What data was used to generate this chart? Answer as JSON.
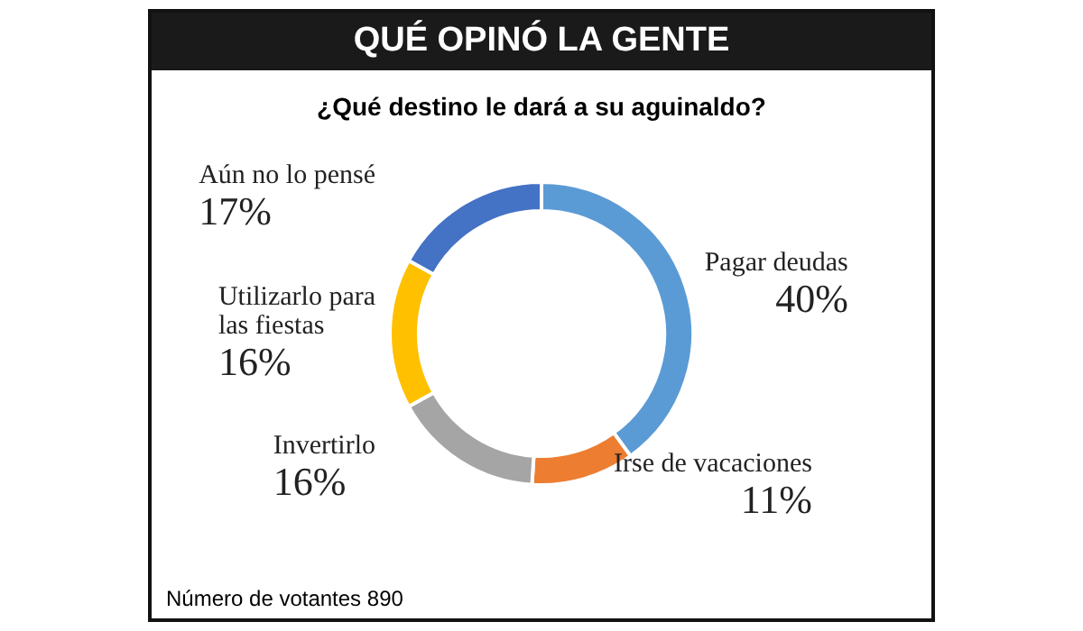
{
  "chart_data": {
    "type": "donut",
    "title": "QUÉ OPINÓ LA GENTE",
    "subtitle": "¿Qué destino le dará a su aguinaldo?",
    "categories": [
      "Pagar deudas",
      "Irse de vacaciones",
      "Invertirlo",
      "Utilizarlo para las fiestas",
      "Aún no lo pensé"
    ],
    "values": [
      40,
      11,
      16,
      16,
      17
    ],
    "value_labels": [
      "40%",
      "11%",
      "16%",
      "16%",
      "17%"
    ],
    "colors": [
      "#5b9bd5",
      "#ed7d31",
      "#a5a5a5",
      "#ffc000",
      "#4472c4"
    ],
    "annotations": [
      "Número de votantes 890"
    ],
    "legend": false
  }
}
